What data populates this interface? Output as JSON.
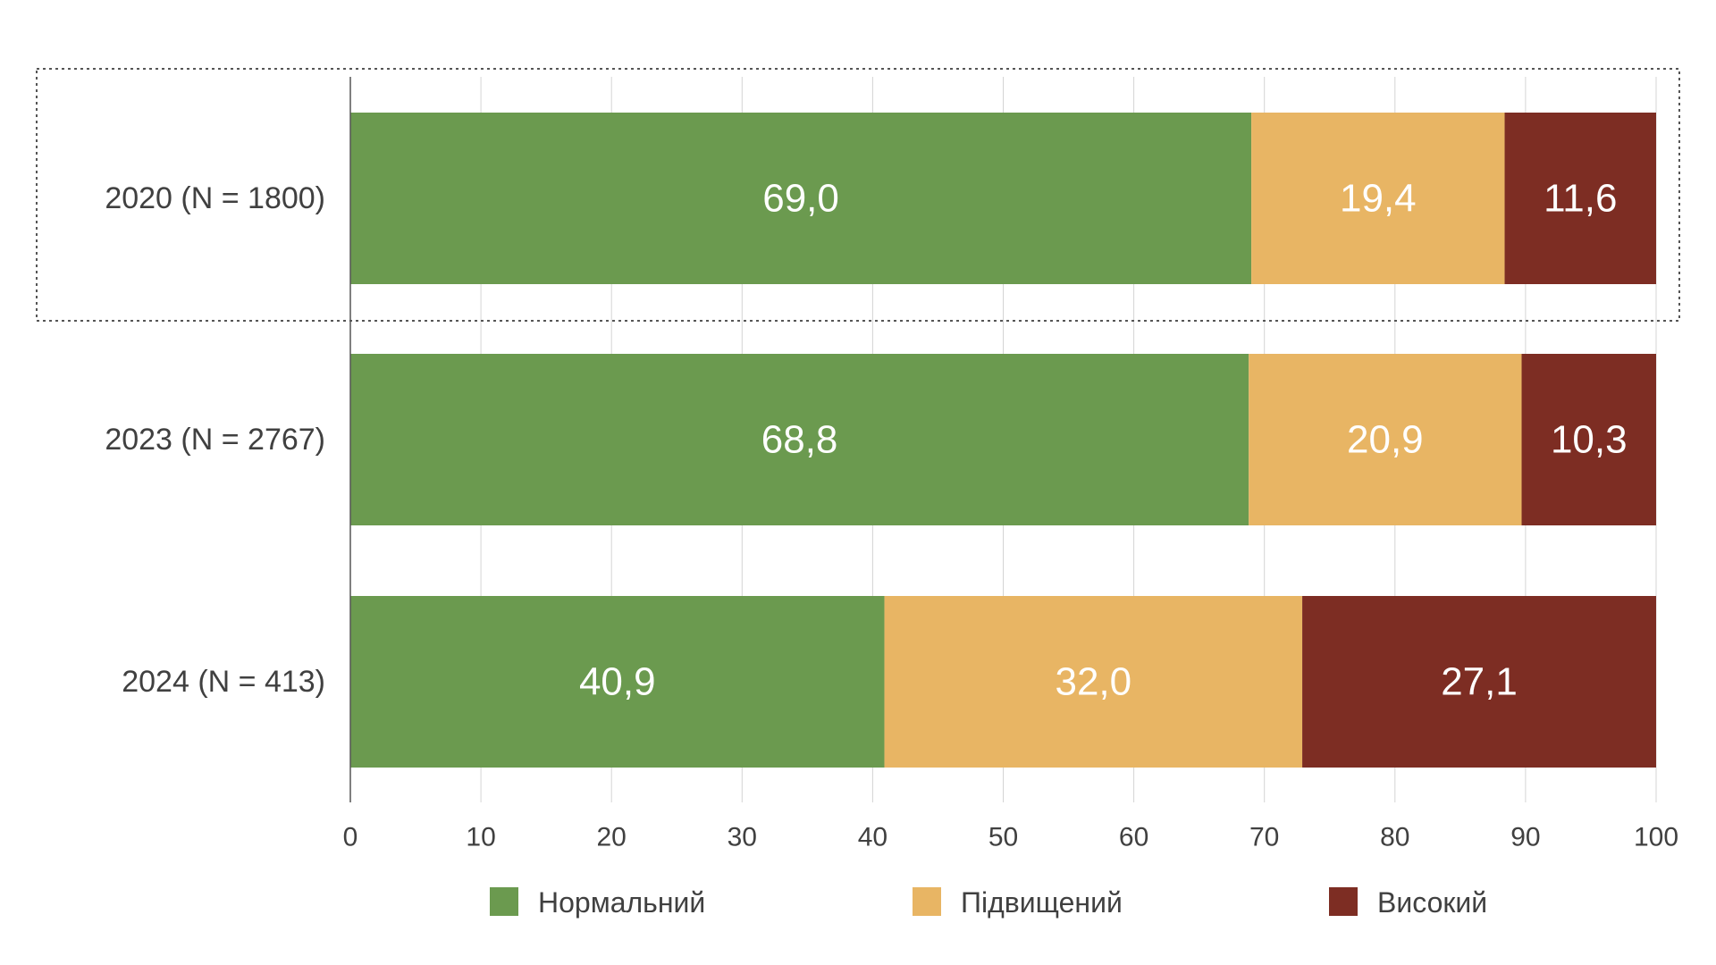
{
  "chart_data": {
    "type": "bar",
    "orientation": "horizontal",
    "stacked": true,
    "categories": [
      "2020 (N = 1800)",
      "2023 (N = 2767)",
      "2024 (N = 413)"
    ],
    "series": [
      {
        "name": "Нормальний",
        "color": "#6b9a4f",
        "values": [
          69.0,
          68.8,
          40.9
        ],
        "labels": [
          "69,0",
          "68,8",
          "40,9"
        ]
      },
      {
        "name": "Підвищений",
        "color": "#e8b564",
        "values": [
          19.4,
          20.9,
          32.0
        ],
        "labels": [
          "19,4",
          "20,9",
          "32,0"
        ]
      },
      {
        "name": "Високий",
        "color": "#7d2d23",
        "values": [
          11.6,
          10.3,
          27.1
        ],
        "labels": [
          "11,6",
          "10,3",
          "27,1"
        ]
      }
    ],
    "x_ticks": [
      "0",
      "10",
      "20",
      "30",
      "40",
      "50",
      "60",
      "70",
      "80",
      "90",
      "100"
    ],
    "xlim": [
      0,
      100
    ],
    "grid": true,
    "legend": "bottom",
    "highlighted_category": "2020 (N = 1800)"
  }
}
